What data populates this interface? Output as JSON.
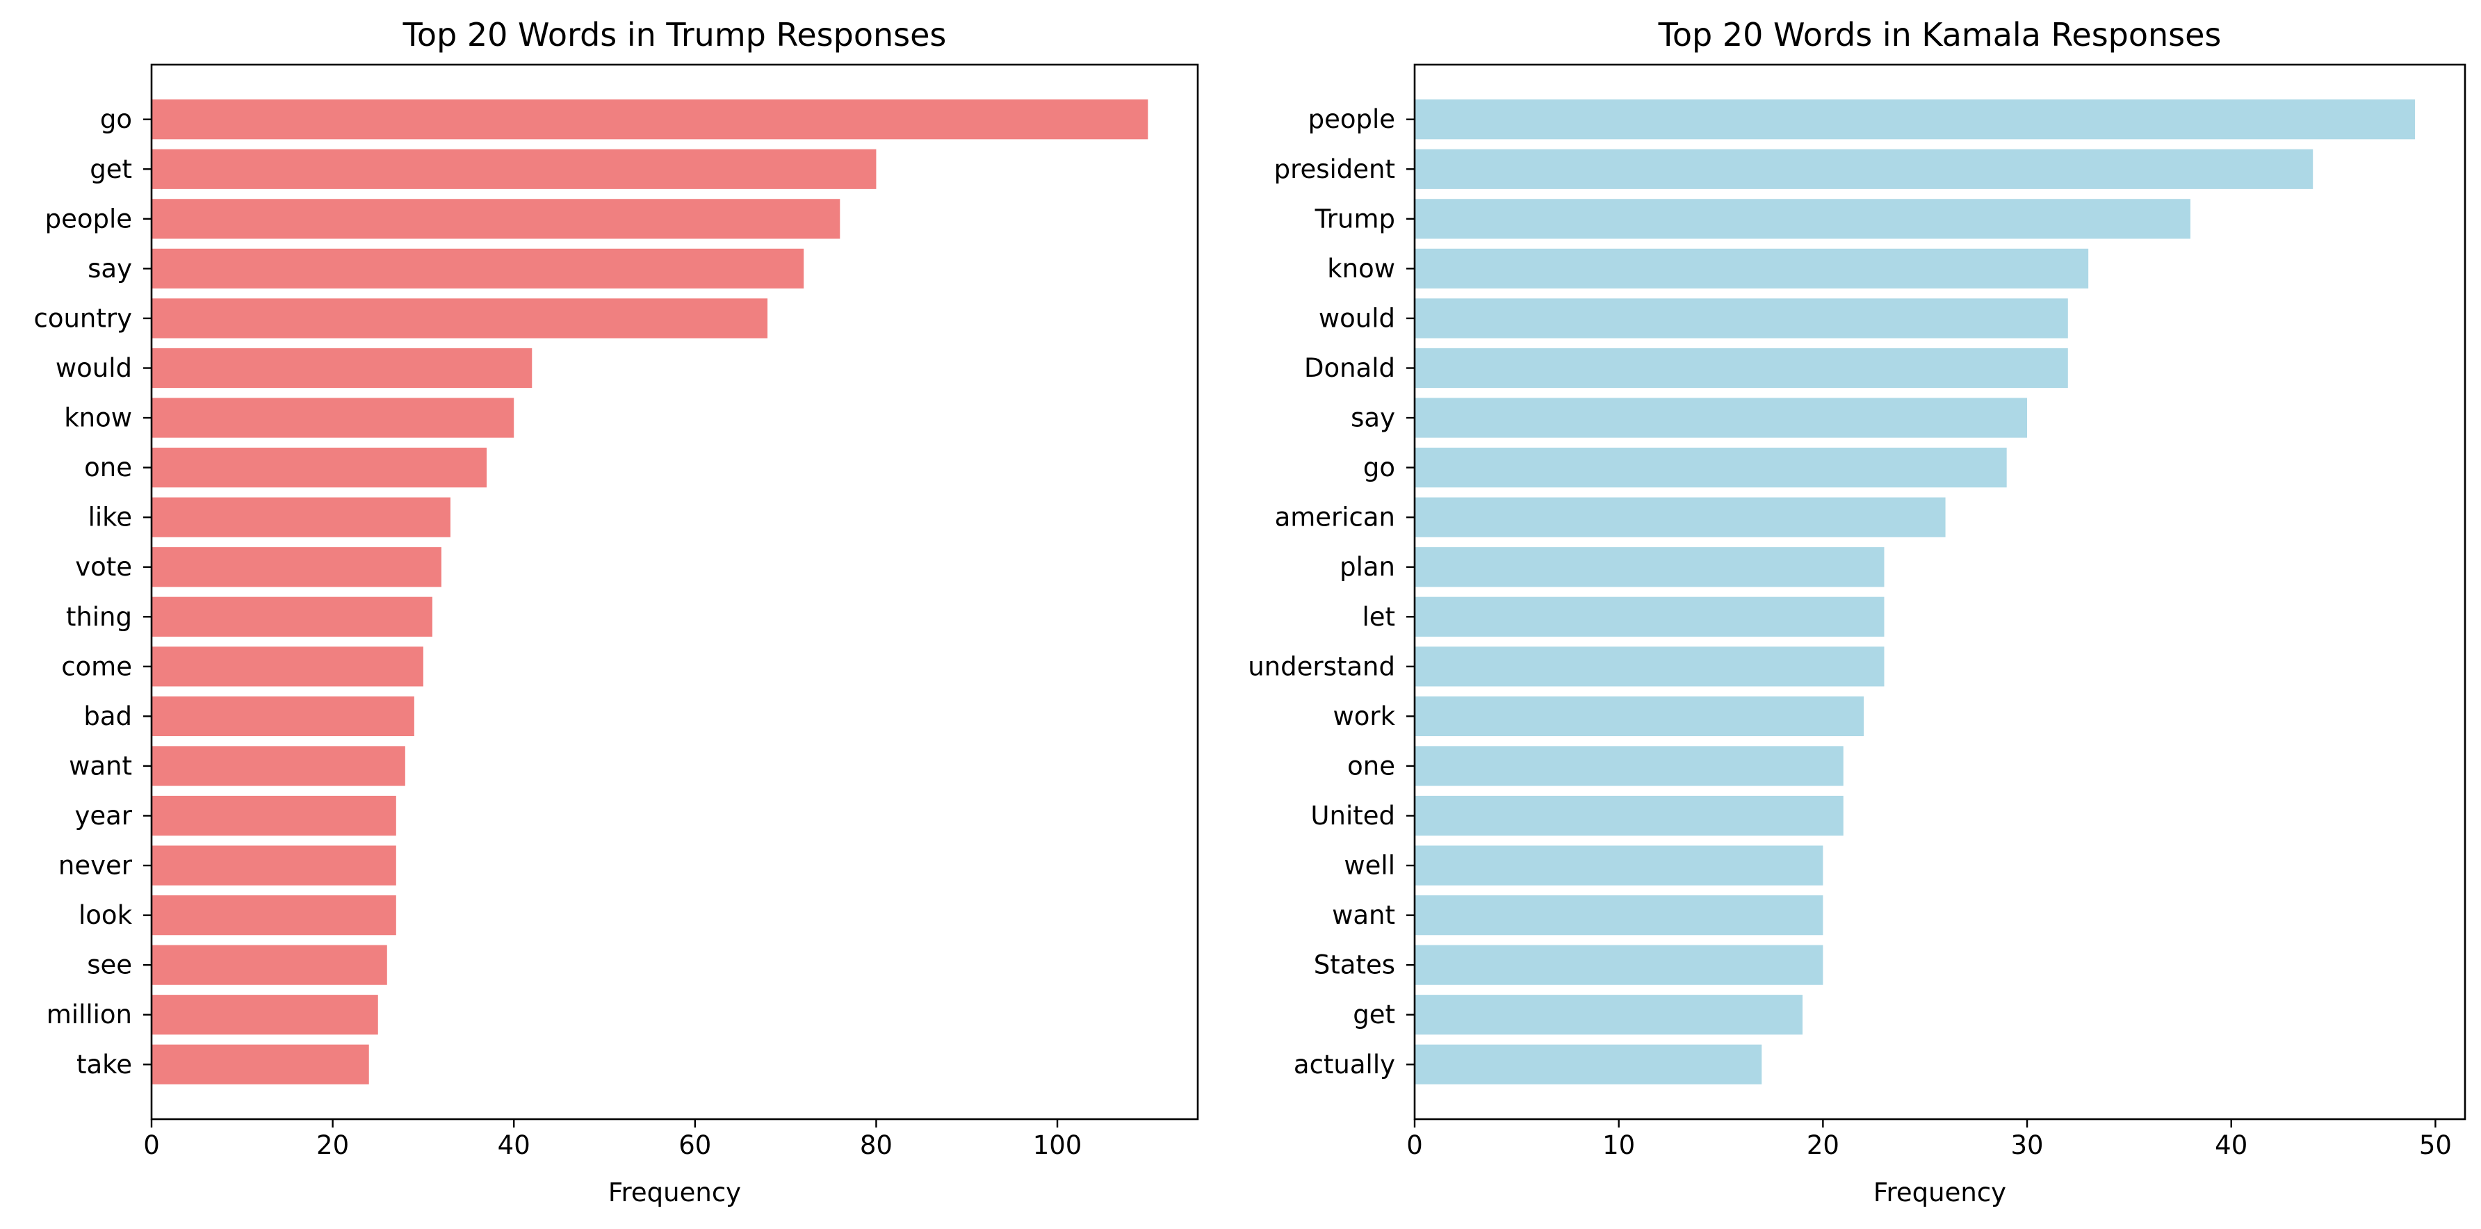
{
  "chart_data": [
    {
      "type": "bar",
      "orientation": "horizontal",
      "title": "Top 20 Words in Trump Responses",
      "xlabel": "Frequency",
      "ylabel": "",
      "xlim": [
        0,
        115.5
      ],
      "xticks": [
        0,
        20,
        40,
        60,
        80,
        100
      ],
      "color": "#f08080",
      "grid": false,
      "categories": [
        "go",
        "get",
        "people",
        "say",
        "country",
        "would",
        "know",
        "one",
        "like",
        "vote",
        "thing",
        "come",
        "bad",
        "want",
        "year",
        "never",
        "look",
        "see",
        "million",
        "take"
      ],
      "values": [
        110,
        80,
        76,
        72,
        68,
        42,
        40,
        37,
        33,
        32,
        31,
        30,
        29,
        28,
        27,
        27,
        27,
        26,
        25,
        24
      ]
    },
    {
      "type": "bar",
      "orientation": "horizontal",
      "title": "Top 20 Words in Kamala Responses",
      "xlabel": "Frequency",
      "ylabel": "",
      "xlim": [
        0,
        51.45
      ],
      "xticks": [
        0,
        10,
        20,
        30,
        40,
        50
      ],
      "color": "#add8e6",
      "grid": false,
      "categories": [
        "people",
        "president",
        "Trump",
        "know",
        "would",
        "Donald",
        "say",
        "go",
        "american",
        "plan",
        "let",
        "understand",
        "work",
        "one",
        "United",
        "well",
        "want",
        "States",
        "get",
        "actually"
      ],
      "values": [
        49,
        44,
        38,
        33,
        32,
        32,
        30,
        29,
        26,
        23,
        23,
        23,
        22,
        21,
        21,
        20,
        20,
        20,
        19,
        17
      ]
    }
  ]
}
